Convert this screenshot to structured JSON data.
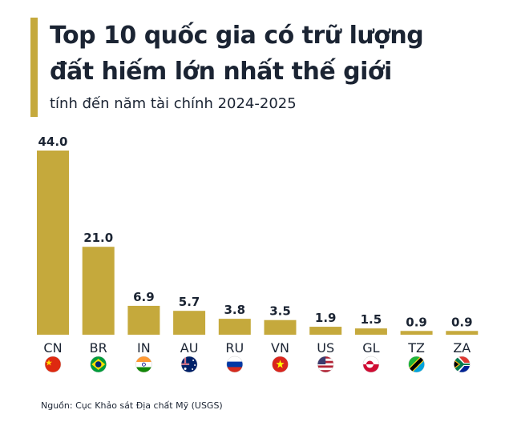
{
  "header": {
    "title_line1": "Top 10 quốc gia có trữ lượng",
    "title_line2": "đất hiếm lớn nhất thế giới",
    "subtitle": "tính đến năm tài chính 2024-2025"
  },
  "source": "Nguồn: Cục Khảo sát Địa chất Mỹ (USGS)",
  "colors": {
    "bar": "#c5a93c",
    "text": "#1b2433"
  },
  "chart_data": {
    "type": "bar",
    "title": "Top 10 quốc gia có trữ lượng đất hiếm lớn nhất thế giới",
    "subtitle": "tính đến năm tài chính 2024-2025",
    "categories": [
      "CN",
      "BR",
      "IN",
      "AU",
      "RU",
      "VN",
      "US",
      "GL",
      "TZ",
      "ZA"
    ],
    "values": [
      44.0,
      21.0,
      6.9,
      5.7,
      3.8,
      3.5,
      1.9,
      1.5,
      0.9,
      0.9
    ],
    "value_labels": [
      "44.0",
      "21.0",
      "6.9",
      "5.7",
      "3.8",
      "3.5",
      "1.9",
      "1.5",
      "0.9",
      "0.9"
    ],
    "flags": [
      "china-flag",
      "brazil-flag",
      "india-flag",
      "australia-flag",
      "russia-flag",
      "vietnam-flag",
      "usa-flag",
      "greenland-flag",
      "tanzania-flag",
      "south-africa-flag"
    ],
    "xlabel": "",
    "ylabel": "",
    "ylim": [
      0,
      44
    ],
    "grid": false,
    "legend": "none"
  }
}
